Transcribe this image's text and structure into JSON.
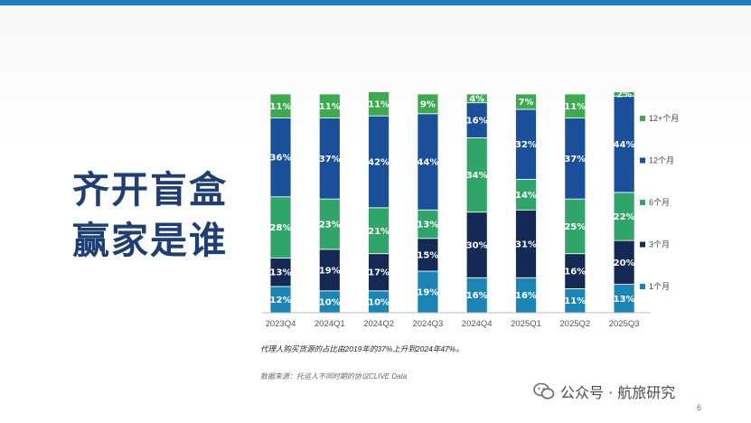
{
  "slide": {
    "title_line1": "齐开盲盒",
    "title_line2": "赢家是谁",
    "note": "代理人购买货源的占比由2019年的37%上升到2024年47%。",
    "source": "数据来源：托运人不同时期的协议CLIVE Data",
    "page_number": "6",
    "watermark": "公众号 · 航旅研究",
    "watermark_icon": "wechat-icon"
  },
  "colors": {
    "top_bar": "#1d7bc0",
    "title": "#1f3f73"
  },
  "chart_data": {
    "type": "bar",
    "stacked": true,
    "percent": true,
    "categories": [
      "2023Q4",
      "2024Q1",
      "2024Q2",
      "2024Q3",
      "2024Q4",
      "2025Q1",
      "2025Q2",
      "2025Q3"
    ],
    "series": [
      {
        "name": "1个月",
        "color": "#1b86b6",
        "values": [
          12,
          10,
          10,
          19,
          16,
          16,
          11,
          13
        ]
      },
      {
        "name": "3个月",
        "color": "#142a54",
        "values": [
          13,
          19,
          17,
          15,
          30,
          31,
          16,
          20
        ]
      },
      {
        "name": "6个月",
        "color": "#2fa56a",
        "values": [
          28,
          23,
          21,
          13,
          34,
          14,
          25,
          22
        ]
      },
      {
        "name": "12个月",
        "color": "#1a4f9a",
        "values": [
          36,
          37,
          42,
          44,
          16,
          32,
          37,
          44
        ]
      },
      {
        "name": "12+个月",
        "color": "#3daa4f",
        "values": [
          11,
          11,
          11,
          9,
          4,
          7,
          11,
          2
        ]
      }
    ],
    "legend_order": [
      "12+个月",
      "12个月",
      "6个月",
      "3个月",
      "1个月"
    ],
    "ylim": [
      0,
      100
    ],
    "legend_position": "right",
    "grid": false
  }
}
